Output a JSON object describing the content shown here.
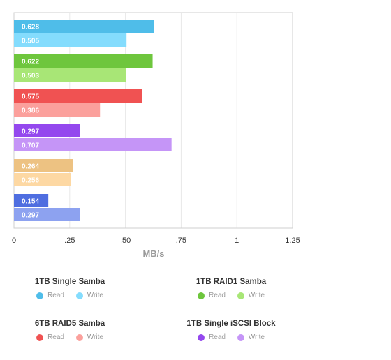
{
  "chart_data": {
    "type": "bar",
    "orientation": "horizontal",
    "x_unit_label": "MB/s",
    "xlim": [
      0,
      1.25
    ],
    "x_ticks": [
      "0",
      ".25",
      ".50",
      ".75",
      "1",
      "1.25"
    ],
    "x_tick_values": [
      0,
      0.25,
      0.5,
      0.75,
      1,
      1.25
    ],
    "grid": "vertical",
    "groups": [
      {
        "name": "1TB Single Samba",
        "read": 0.628,
        "write": 0.505,
        "read_label": "0.628",
        "write_label": "0.505",
        "read_color": "#4fbde9",
        "write_color": "#84dcfd"
      },
      {
        "name": "1TB RAID1 Samba",
        "read": 0.622,
        "write": 0.503,
        "read_label": "0.622",
        "write_label": "0.503",
        "read_color": "#6ec63d",
        "write_color": "#a8e676"
      },
      {
        "name": "6TB RAID5 Samba",
        "read": 0.575,
        "write": 0.386,
        "read_label": "0.575",
        "write_label": "0.386",
        "read_color": "#f05252",
        "write_color": "#fba09c"
      },
      {
        "name": "1TB Single iSCSI Block",
        "read": 0.297,
        "write": 0.707,
        "read_label": "0.297",
        "write_label": "0.707",
        "read_color": "#9448ee",
        "write_color": "#c595f7"
      },
      {
        "name": "",
        "read": 0.264,
        "write": 0.256,
        "read_label": "0.264",
        "write_label": "0.256",
        "read_color": "#edc282",
        "write_color": "#fdd8a3"
      },
      {
        "name": "",
        "read": 0.154,
        "write": 0.297,
        "read_label": "0.154",
        "write_label": "0.297",
        "read_color": "#4f6ee0",
        "write_color": "#8da2f0"
      }
    ]
  },
  "legend": {
    "read_label": "Read",
    "write_label": "Write",
    "items": [
      {
        "title": "1TB Single Samba",
        "read_color": "#4fbde9",
        "write_color": "#84dcfd"
      },
      {
        "title": "1TB RAID1 Samba",
        "read_color": "#6ec63d",
        "write_color": "#a8e676"
      },
      {
        "title": "6TB RAID5 Samba",
        "read_color": "#f05252",
        "write_color": "#fba09c"
      },
      {
        "title": "1TB Single iSCSI Block",
        "read_color": "#9448ee",
        "write_color": "#c595f7"
      }
    ]
  }
}
